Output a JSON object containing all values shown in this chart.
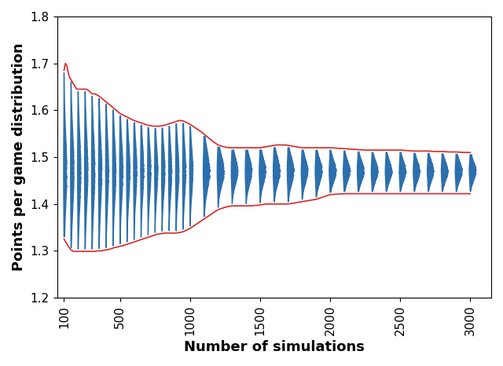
{
  "xlabel": "Number of simulations",
  "ylabel": "Points per game distribution",
  "xlim": [
    50,
    3150
  ],
  "ylim": [
    1.2,
    1.8
  ],
  "xticks": [
    100,
    500,
    1000,
    1500,
    2000,
    2500,
    3000
  ],
  "yticks": [
    1.2,
    1.3,
    1.4,
    1.5,
    1.6,
    1.7,
    1.8
  ],
  "red_upper_pts": [
    [
      100,
      1.685
    ],
    [
      110,
      1.7
    ],
    [
      120,
      1.695
    ],
    [
      130,
      1.68
    ],
    [
      140,
      1.67
    ],
    [
      150,
      1.665
    ],
    [
      160,
      1.66
    ],
    [
      170,
      1.655
    ],
    [
      180,
      1.65
    ],
    [
      190,
      1.645
    ],
    [
      200,
      1.645
    ],
    [
      210,
      1.645
    ],
    [
      220,
      1.645
    ],
    [
      230,
      1.645
    ],
    [
      240,
      1.645
    ],
    [
      250,
      1.645
    ],
    [
      260,
      1.645
    ],
    [
      270,
      1.643
    ],
    [
      280,
      1.641
    ],
    [
      290,
      1.638
    ],
    [
      300,
      1.635
    ],
    [
      320,
      1.635
    ],
    [
      340,
      1.632
    ],
    [
      360,
      1.628
    ],
    [
      380,
      1.623
    ],
    [
      400,
      1.618
    ],
    [
      420,
      1.613
    ],
    [
      440,
      1.608
    ],
    [
      460,
      1.603
    ],
    [
      480,
      1.598
    ],
    [
      500,
      1.593
    ],
    [
      520,
      1.59
    ],
    [
      540,
      1.587
    ],
    [
      560,
      1.584
    ],
    [
      580,
      1.581
    ],
    [
      600,
      1.578
    ],
    [
      620,
      1.576
    ],
    [
      640,
      1.574
    ],
    [
      660,
      1.572
    ],
    [
      680,
      1.57
    ],
    [
      700,
      1.568
    ],
    [
      720,
      1.567
    ],
    [
      740,
      1.566
    ],
    [
      760,
      1.566
    ],
    [
      780,
      1.566
    ],
    [
      800,
      1.567
    ],
    [
      820,
      1.568
    ],
    [
      840,
      1.57
    ],
    [
      860,
      1.572
    ],
    [
      880,
      1.574
    ],
    [
      900,
      1.576
    ],
    [
      920,
      1.578
    ],
    [
      940,
      1.578
    ],
    [
      960,
      1.576
    ],
    [
      980,
      1.573
    ],
    [
      1000,
      1.57
    ],
    [
      1020,
      1.566
    ],
    [
      1040,
      1.562
    ],
    [
      1060,
      1.558
    ],
    [
      1080,
      1.554
    ],
    [
      1100,
      1.549
    ],
    [
      1120,
      1.544
    ],
    [
      1140,
      1.539
    ],
    [
      1160,
      1.534
    ],
    [
      1180,
      1.53
    ],
    [
      1200,
      1.526
    ],
    [
      1220,
      1.524
    ],
    [
      1240,
      1.522
    ],
    [
      1260,
      1.521
    ],
    [
      1280,
      1.52
    ],
    [
      1300,
      1.52
    ],
    [
      1320,
      1.52
    ],
    [
      1340,
      1.52
    ],
    [
      1360,
      1.52
    ],
    [
      1380,
      1.52
    ],
    [
      1400,
      1.52
    ],
    [
      1420,
      1.52
    ],
    [
      1440,
      1.52
    ],
    [
      1460,
      1.52
    ],
    [
      1480,
      1.52
    ],
    [
      1500,
      1.52
    ],
    [
      1520,
      1.521
    ],
    [
      1540,
      1.522
    ],
    [
      1560,
      1.523
    ],
    [
      1580,
      1.524
    ],
    [
      1600,
      1.525
    ],
    [
      1620,
      1.526
    ],
    [
      1640,
      1.526
    ],
    [
      1660,
      1.526
    ],
    [
      1680,
      1.526
    ],
    [
      1700,
      1.525
    ],
    [
      1720,
      1.524
    ],
    [
      1740,
      1.523
    ],
    [
      1760,
      1.522
    ],
    [
      1780,
      1.521
    ],
    [
      1800,
      1.52
    ],
    [
      1820,
      1.52
    ],
    [
      1840,
      1.52
    ],
    [
      1860,
      1.52
    ],
    [
      1880,
      1.52
    ],
    [
      1900,
      1.52
    ],
    [
      1920,
      1.52
    ],
    [
      1940,
      1.52
    ],
    [
      1960,
      1.52
    ],
    [
      1980,
      1.52
    ],
    [
      2000,
      1.52
    ],
    [
      2050,
      1.519
    ],
    [
      2100,
      1.518
    ],
    [
      2150,
      1.517
    ],
    [
      2200,
      1.516
    ],
    [
      2250,
      1.515
    ],
    [
      2300,
      1.515
    ],
    [
      2350,
      1.515
    ],
    [
      2400,
      1.515
    ],
    [
      2450,
      1.515
    ],
    [
      2500,
      1.515
    ],
    [
      2550,
      1.514
    ],
    [
      2600,
      1.513
    ],
    [
      2650,
      1.513
    ],
    [
      2700,
      1.513
    ],
    [
      2750,
      1.512
    ],
    [
      2800,
      1.512
    ],
    [
      2850,
      1.511
    ],
    [
      2900,
      1.511
    ],
    [
      2950,
      1.51
    ],
    [
      3000,
      1.51
    ]
  ],
  "red_lower_pts": [
    [
      100,
      1.325
    ],
    [
      110,
      1.32
    ],
    [
      120,
      1.315
    ],
    [
      130,
      1.31
    ],
    [
      140,
      1.306
    ],
    [
      150,
      1.302
    ],
    [
      160,
      1.3
    ],
    [
      170,
      1.299
    ],
    [
      180,
      1.299
    ],
    [
      190,
      1.299
    ],
    [
      200,
      1.299
    ],
    [
      210,
      1.299
    ],
    [
      220,
      1.299
    ],
    [
      230,
      1.299
    ],
    [
      240,
      1.299
    ],
    [
      250,
      1.299
    ],
    [
      260,
      1.299
    ],
    [
      270,
      1.299
    ],
    [
      280,
      1.299
    ],
    [
      290,
      1.299
    ],
    [
      300,
      1.299
    ],
    [
      320,
      1.299
    ],
    [
      340,
      1.3
    ],
    [
      360,
      1.3
    ],
    [
      380,
      1.301
    ],
    [
      400,
      1.302
    ],
    [
      420,
      1.303
    ],
    [
      440,
      1.305
    ],
    [
      460,
      1.307
    ],
    [
      480,
      1.308
    ],
    [
      500,
      1.31
    ],
    [
      520,
      1.311
    ],
    [
      540,
      1.313
    ],
    [
      560,
      1.315
    ],
    [
      580,
      1.317
    ],
    [
      600,
      1.319
    ],
    [
      620,
      1.321
    ],
    [
      640,
      1.323
    ],
    [
      660,
      1.325
    ],
    [
      680,
      1.327
    ],
    [
      700,
      1.329
    ],
    [
      720,
      1.331
    ],
    [
      740,
      1.333
    ],
    [
      760,
      1.335
    ],
    [
      780,
      1.336
    ],
    [
      800,
      1.337
    ],
    [
      820,
      1.338
    ],
    [
      840,
      1.338
    ],
    [
      860,
      1.338
    ],
    [
      880,
      1.338
    ],
    [
      900,
      1.338
    ],
    [
      920,
      1.339
    ],
    [
      940,
      1.34
    ],
    [
      960,
      1.342
    ],
    [
      980,
      1.345
    ],
    [
      1000,
      1.348
    ],
    [
      1020,
      1.352
    ],
    [
      1040,
      1.356
    ],
    [
      1060,
      1.36
    ],
    [
      1080,
      1.364
    ],
    [
      1100,
      1.368
    ],
    [
      1120,
      1.372
    ],
    [
      1140,
      1.376
    ],
    [
      1160,
      1.38
    ],
    [
      1180,
      1.384
    ],
    [
      1200,
      1.388
    ],
    [
      1220,
      1.39
    ],
    [
      1240,
      1.392
    ],
    [
      1260,
      1.394
    ],
    [
      1280,
      1.395
    ],
    [
      1300,
      1.396
    ],
    [
      1320,
      1.396
    ],
    [
      1340,
      1.396
    ],
    [
      1360,
      1.396
    ],
    [
      1380,
      1.396
    ],
    [
      1400,
      1.396
    ],
    [
      1420,
      1.396
    ],
    [
      1440,
      1.396
    ],
    [
      1460,
      1.397
    ],
    [
      1480,
      1.397
    ],
    [
      1500,
      1.398
    ],
    [
      1520,
      1.399
    ],
    [
      1540,
      1.4
    ],
    [
      1560,
      1.4
    ],
    [
      1580,
      1.4
    ],
    [
      1600,
      1.4
    ],
    [
      1620,
      1.4
    ],
    [
      1640,
      1.4
    ],
    [
      1660,
      1.4
    ],
    [
      1680,
      1.4
    ],
    [
      1700,
      1.4
    ],
    [
      1720,
      1.401
    ],
    [
      1740,
      1.402
    ],
    [
      1760,
      1.403
    ],
    [
      1780,
      1.404
    ],
    [
      1800,
      1.405
    ],
    [
      1820,
      1.406
    ],
    [
      1840,
      1.407
    ],
    [
      1860,
      1.408
    ],
    [
      1880,
      1.409
    ],
    [
      1900,
      1.41
    ],
    [
      1920,
      1.412
    ],
    [
      1940,
      1.414
    ],
    [
      1960,
      1.416
    ],
    [
      1980,
      1.418
    ],
    [
      2000,
      1.42
    ],
    [
      2050,
      1.421
    ],
    [
      2100,
      1.422
    ],
    [
      2150,
      1.422
    ],
    [
      2200,
      1.422
    ],
    [
      2250,
      1.422
    ],
    [
      2300,
      1.422
    ],
    [
      2350,
      1.422
    ],
    [
      2400,
      1.422
    ],
    [
      2450,
      1.422
    ],
    [
      2500,
      1.422
    ],
    [
      2550,
      1.422
    ],
    [
      2600,
      1.422
    ],
    [
      2650,
      1.422
    ],
    [
      2700,
      1.422
    ],
    [
      2750,
      1.422
    ],
    [
      2800,
      1.422
    ],
    [
      2850,
      1.422
    ],
    [
      2900,
      1.422
    ],
    [
      2950,
      1.422
    ],
    [
      3000,
      1.422
    ]
  ],
  "violin_positions": [
    100,
    150,
    200,
    250,
    300,
    350,
    400,
    450,
    500,
    550,
    600,
    650,
    700,
    750,
    800,
    850,
    900,
    950,
    1000,
    1100,
    1200,
    1300,
    1400,
    1500,
    1600,
    1700,
    1800,
    1900,
    2000,
    2100,
    2200,
    2300,
    2400,
    2500,
    2600,
    2700,
    2800,
    2900,
    3000
  ],
  "blue_color": "#2c6fad",
  "red_color": "#d62728",
  "bg_color": "#FFFFFF"
}
